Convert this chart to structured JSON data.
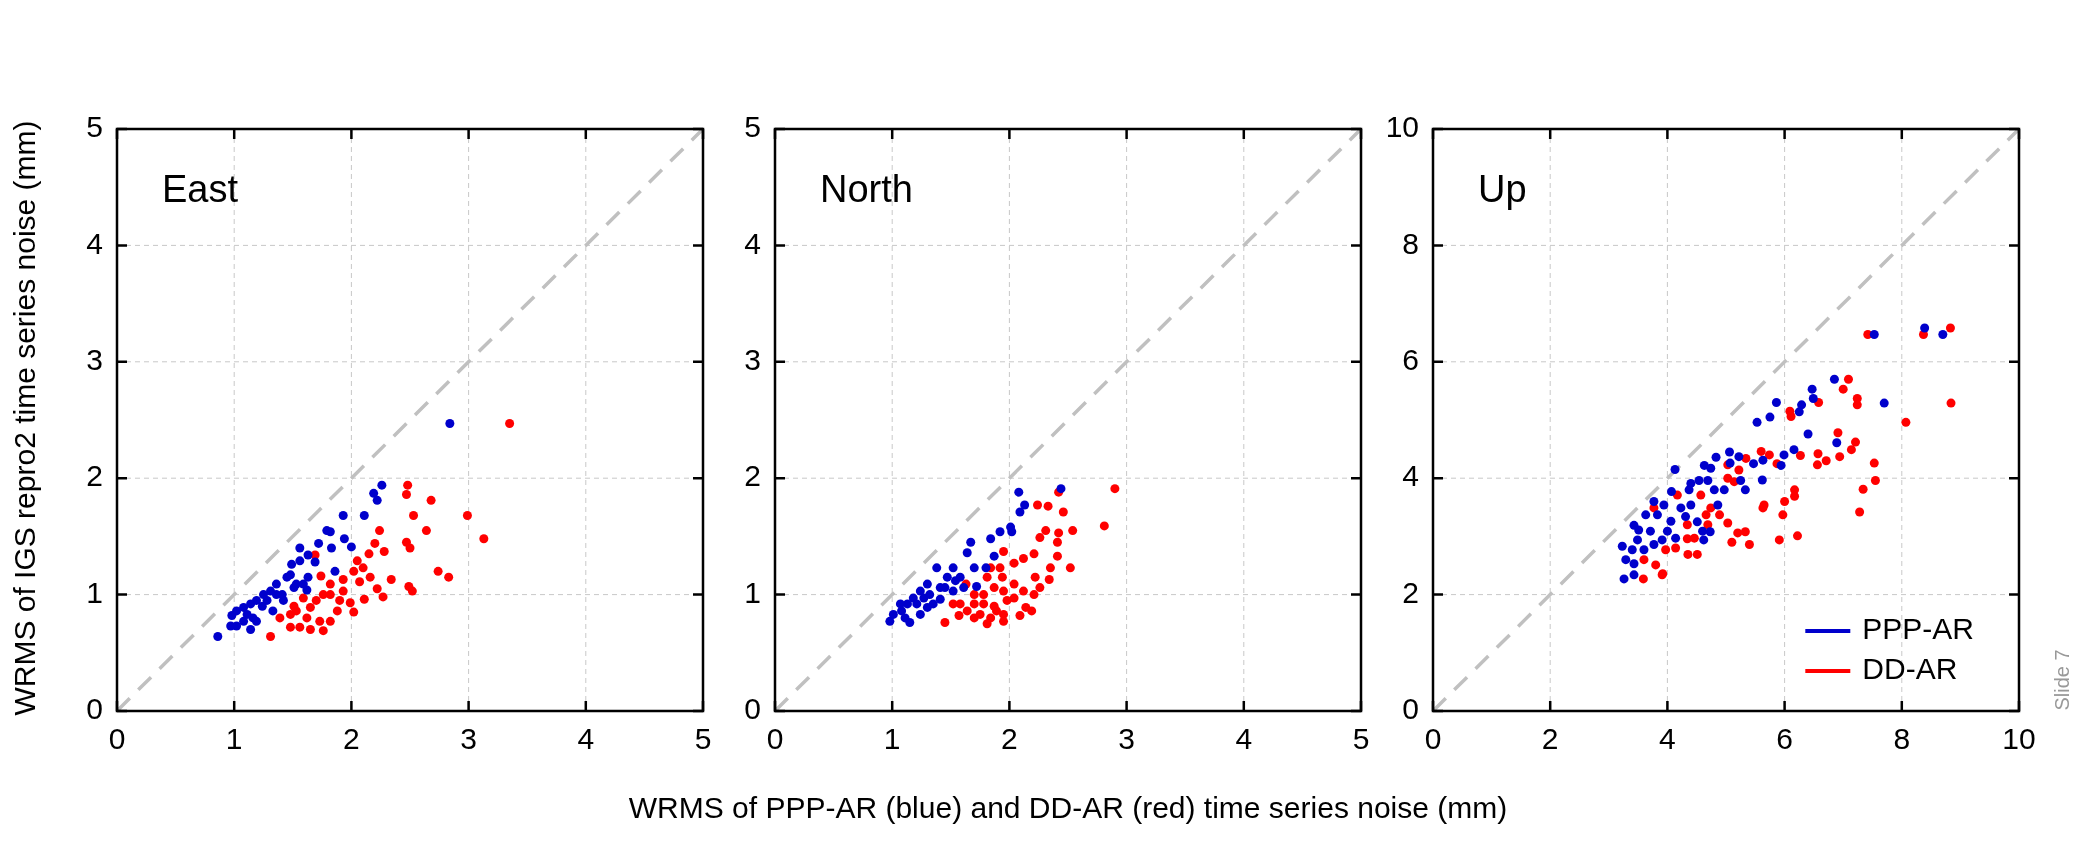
{
  "chart_data": [
    {
      "type": "scatter",
      "title": "East",
      "ylabel": "WRMS of IGS repro2 time series noise (mm)",
      "xlim": [
        0,
        5
      ],
      "ylim": [
        0,
        5
      ],
      "xticks": [
        0,
        1,
        2,
        3,
        4,
        5
      ],
      "yticks": [
        0,
        1,
        2,
        3,
        4,
        5
      ],
      "grid": true,
      "marker": "circle",
      "series": [
        {
          "color": "#0000cc",
          "x": [
            0.86,
            2.84,
            2.26,
            2.19,
            2.22,
            1.93,
            2.11,
            1.79,
            1.82,
            1.94,
            1.72,
            1.83,
            2.0,
            1.56,
            1.63,
            1.56,
            1.49,
            1.86,
            1.69,
            1.63,
            1.45,
            1.36,
            1.31,
            1.25,
            1.19,
            1.14,
            1.08,
            1.02,
            0.98,
            0.97,
            1.14,
            1.19,
            1.33,
            1.42,
            1.51,
            1.59,
            1.62,
            1.41,
            1.28,
            1.11,
            1.02,
            1.24,
            1.36,
            1.48,
            1.53,
            1.08,
            1.16
          ],
          "values": [
            0.64,
            2.47,
            1.94,
            1.87,
            1.81,
            1.68,
            1.68,
            1.55,
            1.54,
            1.48,
            1.44,
            1.4,
            1.41,
            1.4,
            1.34,
            1.29,
            1.26,
            1.2,
            1.28,
            1.15,
            1.15,
            1.09,
            1.03,
            1.0,
            0.95,
            0.92,
            0.89,
            0.86,
            0.82,
            0.73,
            0.7,
            0.77,
            0.86,
            0.95,
            1.06,
            1.09,
            1.04,
            1.0,
            0.95,
            0.83,
            0.73,
            0.9,
            1.0,
            1.17,
            1.09,
            0.77,
            0.8
          ]
        },
        {
          "color": "#ff0000",
          "x": [
            3.35,
            2.48,
            2.47,
            2.68,
            2.53,
            2.99,
            2.24,
            2.64,
            3.13,
            2.2,
            2.47,
            2.5,
            2.15,
            2.28,
            2.05,
            2.1,
            2.02,
            2.16,
            2.34,
            2.74,
            2.83,
            2.49,
            2.52,
            2.22,
            2.27,
            2.11,
            1.99,
            2.02,
            1.93,
            1.93,
            1.74,
            1.69,
            1.82,
            1.76,
            1.7,
            1.65,
            1.59,
            1.51,
            1.48,
            1.39,
            1.48,
            1.56,
            1.65,
            1.76,
            1.82,
            1.73,
            1.53,
            1.62,
            1.88,
            1.9,
            1.31,
            1.82,
            2.07
          ],
          "values": [
            2.47,
            1.94,
            1.86,
            1.81,
            1.68,
            1.68,
            1.55,
            1.55,
            1.48,
            1.44,
            1.45,
            1.4,
            1.35,
            1.37,
            1.29,
            1.23,
            1.2,
            1.15,
            1.13,
            1.2,
            1.15,
            1.07,
            1.03,
            1.05,
            0.98,
            0.96,
            0.93,
            0.85,
            1.03,
            1.13,
            1.16,
            1.34,
            1.09,
            1.0,
            0.95,
            0.89,
            0.97,
            0.9,
            0.83,
            0.8,
            0.72,
            0.72,
            0.7,
            0.69,
            0.77,
            0.77,
            0.86,
            0.8,
            0.86,
            0.95,
            0.64,
            1.0,
            1.11
          ]
        },
        {
          "type": "line",
          "color": "#c0c0c0",
          "line_style": "dashed",
          "marker": "none",
          "x": [
            0,
            5
          ],
          "values": [
            0,
            5
          ]
        }
      ]
    },
    {
      "type": "scatter",
      "title": "North",
      "xlabel": "WRMS of PPP-AR (blue) and DD-AR (red) time series noise (mm)",
      "xlim": [
        0,
        5
      ],
      "ylim": [
        0,
        5
      ],
      "xticks": [
        0,
        1,
        2,
        3,
        4,
        5
      ],
      "yticks": [
        0,
        1,
        2,
        3,
        4,
        5
      ],
      "grid": true,
      "marker": "circle",
      "series": [
        {
          "color": "#0000cc",
          "x": [
            2.44,
            2.08,
            2.13,
            2.09,
            2.01,
            2.02,
            1.92,
            1.84,
            1.67,
            1.87,
            1.64,
            1.8,
            1.72,
            1.52,
            1.38,
            1.7,
            1.58,
            1.47,
            1.41,
            1.3,
            1.24,
            1.32,
            1.18,
            1.13,
            1.07,
            1.01,
            0.98,
            1.08,
            1.15,
            1.24,
            1.3,
            1.41,
            1.52,
            1.61,
            1.21,
            1.35,
            1.27,
            1.11,
            1.54,
            1.45
          ],
          "values": [
            1.91,
            1.88,
            1.77,
            1.71,
            1.58,
            1.54,
            1.54,
            1.48,
            1.45,
            1.33,
            1.36,
            1.23,
            1.07,
            1.23,
            1.23,
            1.23,
            1.15,
            1.15,
            1.06,
            1.09,
            1.03,
            1.0,
            0.97,
            0.92,
            0.92,
            0.83,
            0.77,
            0.86,
            0.76,
            0.83,
            0.89,
            0.96,
            1.03,
            1.06,
            0.92,
            0.92,
            0.97,
            0.8,
            1.12,
            1.06
          ]
        },
        {
          "color": "#ff0000",
          "x": [
            2.9,
            2.42,
            2.24,
            2.33,
            2.46,
            2.81,
            2.54,
            2.31,
            2.42,
            2.26,
            2.41,
            1.95,
            2.21,
            2.41,
            2.52,
            2.35,
            2.12,
            2.04,
            1.92,
            1.84,
            1.81,
            1.94,
            2.22,
            2.34,
            2.26,
            2.04,
            1.95,
            2.12,
            2.21,
            1.87,
            1.78,
            1.7,
            1.63,
            1.52,
            1.58,
            1.7,
            1.78,
            1.87,
            1.98,
            2.04,
            2.14,
            2.19,
            2.09,
            1.95,
            1.89,
            1.84,
            1.81,
            1.7,
            1.57,
            1.45,
            1.95,
            1.64,
            1.75
          ],
          "values": [
            1.91,
            1.88,
            1.77,
            1.76,
            1.71,
            1.59,
            1.55,
            1.55,
            1.53,
            1.49,
            1.45,
            1.37,
            1.35,
            1.33,
            1.23,
            1.23,
            1.31,
            1.27,
            1.23,
            1.23,
            1.15,
            1.15,
            1.15,
            1.13,
            1.06,
            1.09,
            1.03,
            1.03,
            1.0,
            1.06,
            1.0,
            1.0,
            1.09,
            0.92,
            0.92,
            0.92,
            0.92,
            0.9,
            0.95,
            0.97,
            0.89,
            0.86,
            0.82,
            0.83,
            0.86,
            0.8,
            0.75,
            0.8,
            0.82,
            0.76,
            0.77,
            0.86,
            0.83
          ]
        },
        {
          "type": "line",
          "color": "#c0c0c0",
          "line_style": "dashed",
          "marker": "none",
          "x": [
            0,
            5
          ],
          "values": [
            0,
            5
          ]
        }
      ]
    },
    {
      "type": "scatter",
      "title": "Up",
      "xlim": [
        0,
        10
      ],
      "ylim": [
        0,
        10
      ],
      "xticks": [
        0,
        2,
        4,
        6,
        8,
        10
      ],
      "yticks": [
        0,
        2,
        4,
        6,
        8,
        10
      ],
      "grid": true,
      "legend": "bottom right",
      "marker": "circle",
      "annotations": [
        "Slide 7"
      ],
      "series": [
        {
          "name": "PPP-AR",
          "color": "#0000cc",
          "x": [
            8.39,
            7.53,
            8.7,
            6.85,
            6.47,
            6.49,
            5.86,
            6.29,
            6.25,
            5.75,
            5.53,
            7.7,
            6.4,
            6.89,
            6.16,
            5.99,
            5.94,
            5.63,
            5.47,
            5.62,
            5.33,
            5.25,
            5.06,
            4.83,
            5.22,
            5.07,
            4.63,
            4.13,
            4.74,
            4.54,
            4.4,
            4.69,
            4.8,
            4.97,
            4.86,
            4.07,
            4.37,
            3.77,
            3.94,
            4.23,
            4.4,
            3.63,
            3.83,
            4.06,
            4.31,
            4.51,
            3.43,
            3.51,
            3.71,
            4.0,
            4.14,
            4.6,
            4.73,
            4.62,
            3.91,
            3.49,
            3.23,
            3.4,
            3.6,
            3.77,
            3.29,
            3.43,
            3.43,
            3.26
          ],
          "values": [
            6.58,
            6.47,
            6.47,
            5.7,
            5.53,
            5.37,
            5.3,
            5.26,
            5.14,
            5.05,
            4.96,
            5.29,
            4.76,
            4.61,
            4.49,
            4.4,
            4.22,
            4.31,
            4.25,
            3.97,
            3.8,
            3.96,
            4.45,
            4.36,
            4.37,
            4.26,
            4.22,
            4.15,
            4.17,
            3.96,
            3.91,
            3.96,
            3.8,
            3.8,
            3.54,
            3.77,
            3.8,
            3.6,
            3.54,
            3.49,
            3.54,
            3.37,
            3.37,
            3.26,
            3.34,
            3.25,
            3.19,
            3.11,
            3.09,
            3.09,
            2.97,
            3.09,
            3.08,
            2.94,
            2.94,
            2.94,
            2.83,
            2.77,
            2.77,
            2.86,
            2.6,
            2.53,
            2.34,
            2.27
          ]
        },
        {
          "name": "DD-AR",
          "color": "#ff0000",
          "x": [
            8.83,
            8.37,
            7.42,
            7.09,
            7.0,
            7.24,
            7.24,
            8.84,
            6.58,
            6.09,
            6.11,
            8.07,
            6.91,
            7.21,
            7.14,
            6.57,
            6.27,
            6.71,
            6.94,
            6.56,
            7.53,
            7.55,
            7.34,
            7.28,
            5.6,
            5.74,
            5.87,
            5.34,
            5.22,
            5.03,
            5.03,
            5.14,
            6.17,
            6.17,
            6.0,
            5.65,
            5.63,
            5.97,
            5.03,
            5.2,
            5.33,
            5.4,
            5.1,
            5.91,
            6.22,
            4.57,
            4.74,
            4.89,
            4.69,
            4.46,
            4.35,
            4.51,
            4.14,
            3.97,
            3.8,
            3.6,
            3.91,
            3.59,
            4.34,
            3.77,
            4.17,
            4.66,
            4.34,
            3.92
          ],
          "values": [
            6.58,
            6.47,
            6.47,
            5.7,
            5.53,
            5.37,
            5.26,
            5.29,
            5.3,
            5.15,
            5.06,
            4.96,
            4.78,
            4.62,
            4.49,
            4.42,
            4.39,
            4.3,
            4.37,
            4.23,
            4.26,
            3.96,
            3.81,
            3.42,
            4.46,
            4.4,
            4.25,
            4.34,
            4.14,
            4.23,
            4.0,
            3.94,
            3.8,
            3.69,
            3.6,
            3.54,
            3.49,
            3.37,
            3.23,
            3.06,
            3.08,
            2.86,
            2.9,
            2.94,
            3.01,
            3.71,
            3.49,
            3.37,
            3.2,
            2.97,
            2.69,
            2.69,
            2.8,
            2.77,
            2.51,
            2.6,
            2.34,
            2.27,
            3.2,
            3.49,
            3.71,
            3.37,
            2.96,
            2.36
          ]
        },
        {
          "type": "line",
          "color": "#c0c0c0",
          "line_style": "dashed",
          "marker": "none",
          "x": [
            0,
            10
          ],
          "values": [
            0,
            10
          ]
        }
      ]
    }
  ]
}
